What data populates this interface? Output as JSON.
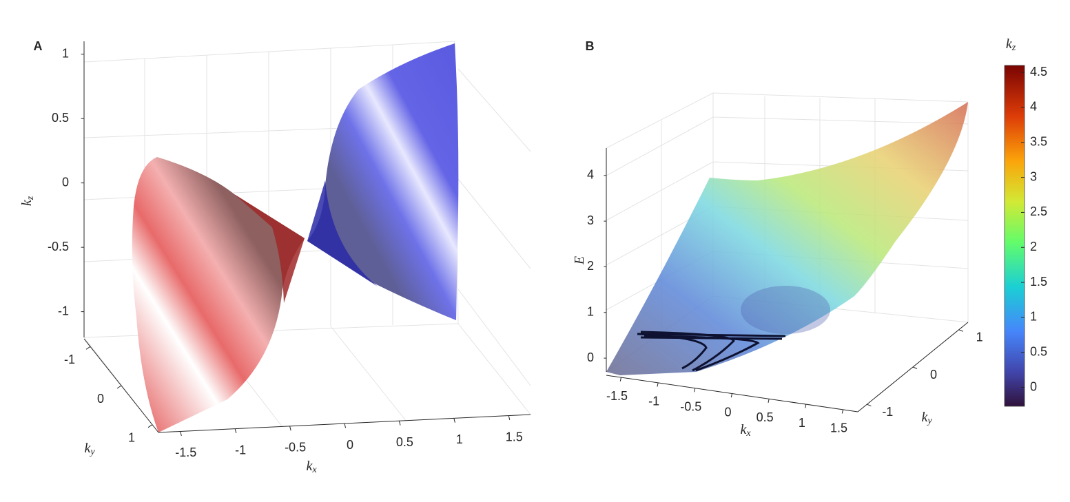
{
  "chart_data": [
    {
      "type": "surface3d",
      "title": "A",
      "xlabel": {
        "text": "k",
        "sub": "x"
      },
      "ylabel": {
        "text": "k",
        "sub": "y"
      },
      "zlabel": {
        "text": "k",
        "sub": "z"
      },
      "xlim": [
        -1.7,
        1.7
      ],
      "xticks": [
        -1.5,
        -1,
        -0.5,
        0,
        0.5,
        1,
        1.5
      ],
      "ylim": [
        -1.2,
        1.2
      ],
      "yticks": [
        -1,
        0,
        1
      ],
      "zlim": [
        -1.2,
        1.1
      ],
      "zticks": [
        -1,
        -0.5,
        0,
        0.5,
        1
      ],
      "grid": true
    },
    {
      "type": "surface3d",
      "title": "B",
      "xlabel": {
        "text": "k",
        "sub": "x"
      },
      "ylabel": {
        "text": "k",
        "sub": "y"
      },
      "zlabel": {
        "text": "E"
      },
      "xlim": [
        -1.7,
        1.7
      ],
      "xticks": [
        -1.5,
        -1,
        -0.5,
        0,
        0.5,
        1,
        1.5
      ],
      "ylim": [
        -1.2,
        1.2
      ],
      "yticks": [
        -1,
        0,
        1
      ],
      "zlim": [
        -0.3,
        4.6
      ],
      "zticks": [
        0,
        1,
        2,
        3,
        4
      ],
      "grid": true,
      "colorbar": {
        "label": {
          "text": "k",
          "sub": "z"
        },
        "clim": [
          -0.27,
          4.6
        ],
        "ticks": [
          0,
          0.5,
          1,
          1.5,
          2,
          2.5,
          3,
          3.5,
          4,
          4.5
        ]
      }
    }
  ]
}
